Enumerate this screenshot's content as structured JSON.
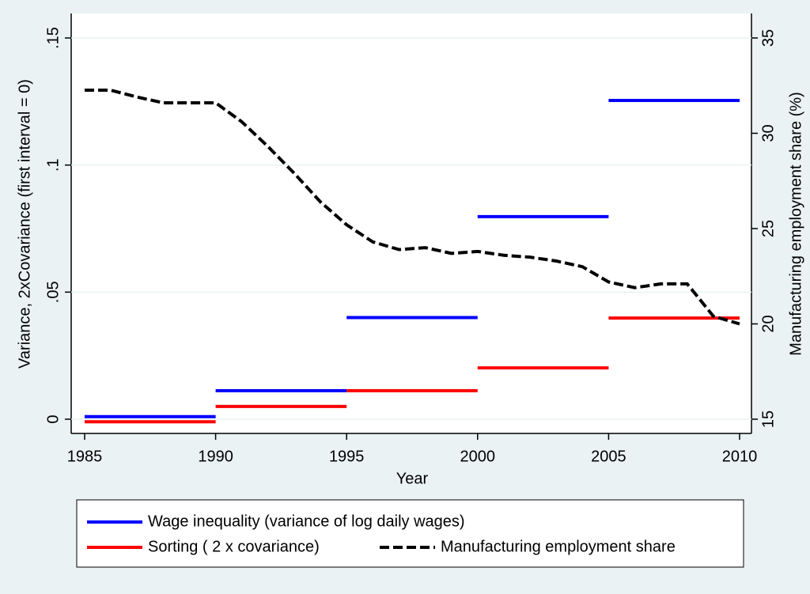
{
  "chart_data": {
    "type": "step-line",
    "xlabel": "Year",
    "ylabel": "Variance, 2xCovariance (first interval = 0)",
    "y2label": "Manufacturing employment share (%)",
    "xlim": [
      1985,
      2010
    ],
    "xticks": [
      1985,
      1990,
      1995,
      2000,
      2005,
      2010
    ],
    "ylim": [
      0,
      0.15
    ],
    "yticks": [
      0,
      {
        "value": 0.05,
        "label": ".05"
      },
      {
        "value": 0.1,
        "label": ".1"
      },
      {
        "value": 0.15,
        "label": ".15"
      }
    ],
    "y2lim": [
      15,
      35
    ],
    "y2ticks": [
      15,
      20,
      25,
      30,
      35
    ],
    "grid": true,
    "series": [
      {
        "name": "Wage inequality (variance of log daily wages)",
        "color": "#0000ff",
        "style": "step",
        "x": [
          1985,
          1990,
          1995,
          2000,
          2005
        ],
        "x_end": [
          1990,
          1995,
          2000,
          2005,
          2010
        ],
        "values": [
          0.001,
          0.0112,
          0.04,
          0.0797,
          0.1254
        ]
      },
      {
        "name": "Sorting ( 2 x covariance)",
        "color": "#ff0000",
        "style": "step",
        "x": [
          1985,
          1990,
          1995,
          2000,
          2005
        ],
        "x_end": [
          1990,
          1995,
          2000,
          2005,
          2010
        ],
        "values": [
          -0.001,
          0.005,
          0.0112,
          0.0202,
          0.0398
        ]
      },
      {
        "name": "Manufacturing employment share",
        "color": "#000000",
        "style": "dashed",
        "axis": "y2",
        "x": [
          1985,
          1986,
          1987,
          1988,
          1989,
          1990,
          1991,
          1992,
          1993,
          1994,
          1995,
          1996,
          1997,
          1998,
          1999,
          2000,
          2001,
          2002,
          2003,
          2004,
          2005,
          2006,
          2007,
          2008,
          2009,
          2010
        ],
        "values": [
          32.26,
          32.26,
          31.9,
          31.6,
          31.6,
          31.6,
          30.6,
          29.3,
          27.9,
          26.4,
          25.2,
          24.3,
          23.9,
          24.0,
          23.7,
          23.8,
          23.6,
          23.5,
          23.3,
          23.0,
          22.2,
          21.9,
          22.1,
          22.1,
          20.4,
          20.0
        ]
      }
    ]
  }
}
